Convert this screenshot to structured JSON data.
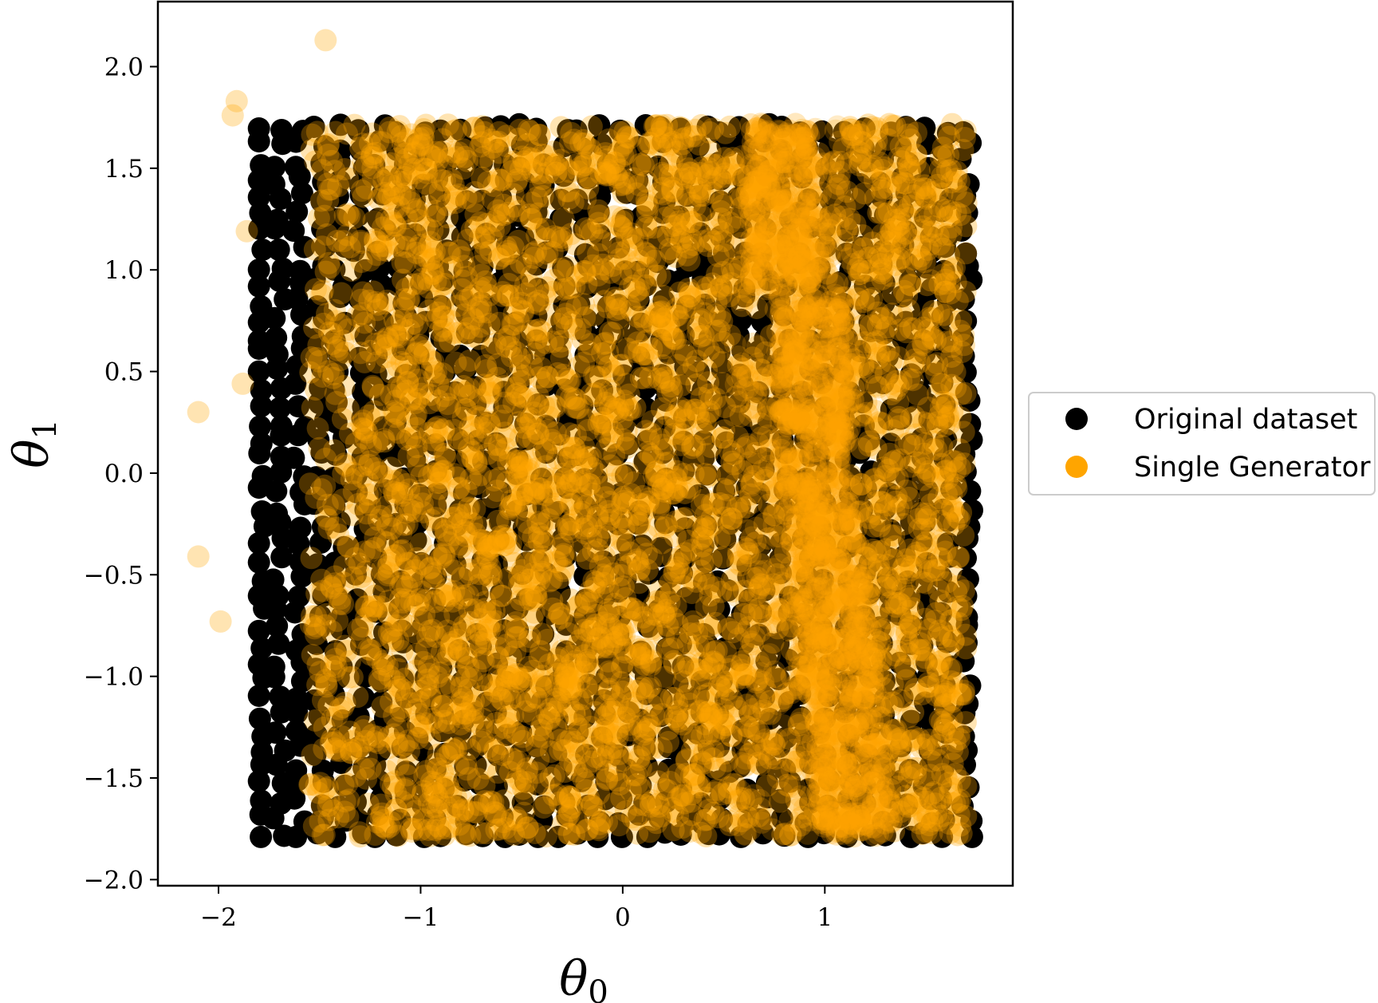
{
  "chart_data": {
    "type": "scatter",
    "title": "",
    "xlabel": {
      "base": "θ",
      "sub": "0"
    },
    "ylabel": {
      "base": "θ",
      "sub": "1"
    },
    "xlim": [
      -2.3,
      1.93
    ],
    "ylim": [
      -2.03,
      2.32
    ],
    "xticks": [
      -2,
      -1,
      0,
      1
    ],
    "xtick_labels": [
      "−2",
      "−1",
      "0",
      "1"
    ],
    "yticks": [
      2.0,
      1.5,
      1.0,
      0.5,
      0.0,
      -0.5,
      -1.0,
      -1.5,
      -2.0
    ],
    "ytick_labels": [
      "2.0",
      "1.5",
      "1.0",
      "0.5",
      "0.0",
      "−0.5",
      "−1.0",
      "−1.5",
      "−2.0"
    ],
    "grid": false,
    "legend_position": "outside right",
    "series": [
      {
        "name": "Original dataset",
        "color": "#000000",
        "alpha": 1.0,
        "region": {
          "x": [
            -1.8,
            1.74
          ],
          "y": [
            -1.79,
            1.72
          ]
        }
      },
      {
        "name": "Single Generator",
        "color": "#ffa500",
        "alpha": 0.3,
        "region": {
          "x": [
            -1.55,
            1.7
          ],
          "y": [
            -1.79,
            1.72
          ]
        },
        "outliers": [
          {
            "x": -1.47,
            "y": 2.13
          },
          {
            "x": -1.91,
            "y": 1.83
          },
          {
            "x": -1.93,
            "y": 1.76
          },
          {
            "x": -1.86,
            "y": 1.19
          },
          {
            "x": -1.88,
            "y": 0.44
          },
          {
            "x": -2.1,
            "y": 0.3
          },
          {
            "x": -2.1,
            "y": -0.41
          },
          {
            "x": -1.99,
            "y": -0.73
          }
        ]
      }
    ]
  }
}
